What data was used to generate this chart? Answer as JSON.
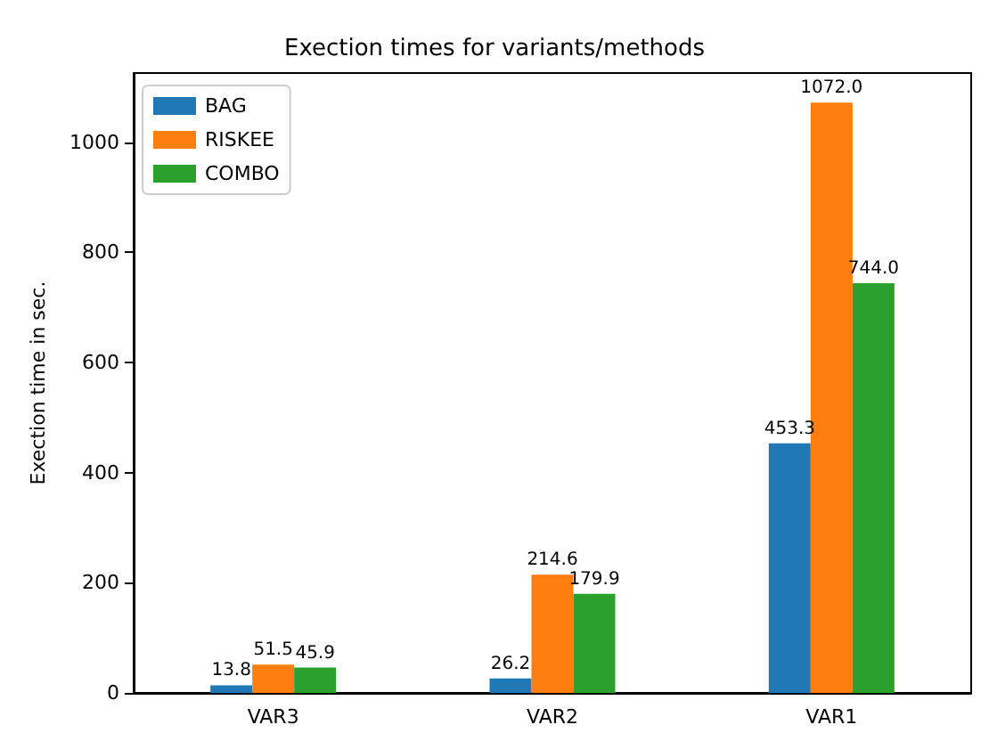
{
  "chart_data": {
    "type": "bar",
    "title": "Exection times for variants/methods",
    "ylabel": "Exection time in sec.",
    "categories": [
      "VAR3",
      "VAR2",
      "VAR1"
    ],
    "series": [
      {
        "name": "BAG",
        "color": "#1f77b4",
        "values": [
          13.8,
          26.2,
          453.3
        ],
        "value_labels": [
          "13.8",
          "26.2",
          "453.3"
        ]
      },
      {
        "name": "RISKEE",
        "color": "#ff7f0e",
        "values": [
          51.5,
          214.6,
          1072.0
        ],
        "value_labels": [
          "51.5",
          "214.6",
          "1072.0"
        ]
      },
      {
        "name": "COMBO",
        "color": "#2ca02c",
        "values": [
          45.9,
          179.9,
          744.0
        ],
        "value_labels": [
          "45.9",
          "179.9",
          "744.0"
        ]
      }
    ],
    "ylim": [
      0,
      1125.6
    ],
    "yticks": [
      0,
      200,
      400,
      600,
      800,
      1000
    ],
    "grid": false,
    "legend": "top left"
  }
}
